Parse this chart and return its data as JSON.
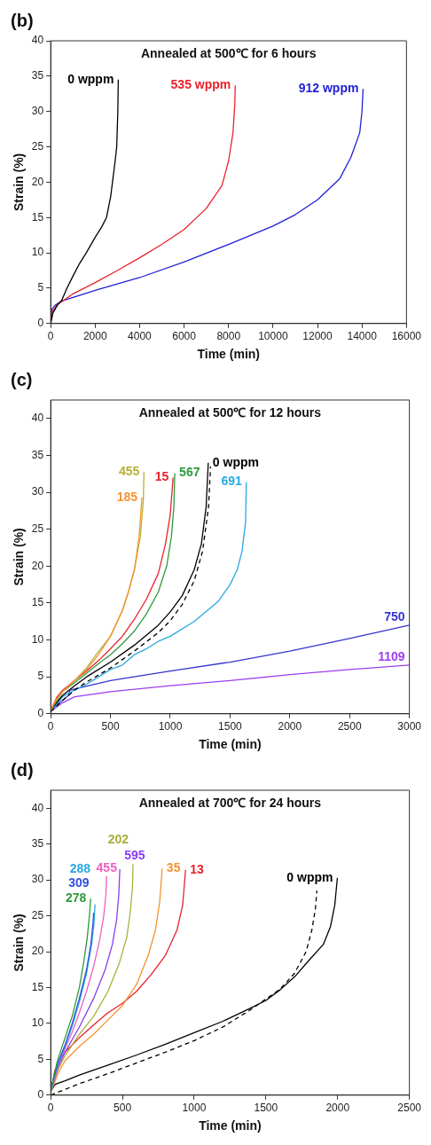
{
  "chart_data": [
    {
      "type": "line",
      "title": "(b)",
      "subtitle": "Annealed at 500℃ for 6 hours",
      "xlabel": "Time (min)",
      "ylabel": "Strain (%)",
      "xlim": [
        0,
        16000
      ],
      "xticks": [
        0,
        2000,
        4000,
        6000,
        8000,
        10000,
        12000,
        14000,
        16000
      ],
      "ylim": [
        0,
        40
      ],
      "yticks": [
        0,
        5,
        10,
        15,
        20,
        25,
        30,
        35,
        40
      ],
      "legend": false,
      "series": [
        {
          "name": "0 wppm",
          "color": "#000000",
          "x": [
            0,
            100,
            300,
            500,
            730,
            1000,
            1300,
            1600,
            2000,
            2300,
            2510,
            2700,
            2780,
            2900,
            2970,
            3020,
            3040
          ],
          "values": [
            0,
            1.5,
            2.6,
            3.3,
            5,
            6.7,
            8.5,
            10,
            12.2,
            13.7,
            15,
            18,
            20,
            23,
            25,
            30,
            34.5
          ]
        },
        {
          "name": "535 wppm",
          "color": "#e8222a",
          "x": [
            0,
            100,
            300,
            600,
            1000,
            2000,
            3000,
            4000,
            5000,
            6000,
            7000,
            7700,
            8000,
            8200,
            8280,
            8300
          ],
          "values": [
            0,
            1.8,
            2.7,
            3.3,
            4.2,
            5.8,
            7.5,
            9.3,
            11.2,
            13.3,
            16.3,
            19.5,
            23,
            27,
            31,
            33.7
          ]
        },
        {
          "name": "912 wppm",
          "color": "#2020d8",
          "x": [
            0,
            50,
            200,
            500,
            1000,
            1600,
            2000,
            4000,
            6000,
            8000,
            10000,
            11000,
            12000,
            13000,
            13500,
            13900,
            14000,
            14050
          ],
          "values": [
            0,
            2,
            2.6,
            3.2,
            3.7,
            4.3,
            4.7,
            6.5,
            8.7,
            11.2,
            13.8,
            15.4,
            17.5,
            20.5,
            23.5,
            27,
            30,
            33.2
          ]
        }
      ]
    },
    {
      "type": "line",
      "title": "(c)",
      "subtitle": "Annealed at 500℃ for 12 hours",
      "xlabel": "Time (min)",
      "ylabel": "Strain (%)",
      "xlim": [
        0,
        3000
      ],
      "xticks": [
        0,
        500,
        1000,
        1500,
        2000,
        2500,
        3000
      ],
      "ylim": [
        0,
        42.5
      ],
      "yticks": [
        0,
        5,
        10,
        15,
        20,
        25,
        30,
        35,
        40
      ],
      "legend": false,
      "series": [
        {
          "name": "185",
          "color": "#f5922f",
          "x": [
            0,
            50,
            100,
            200,
            300,
            400,
            500,
            600,
            650,
            700,
            740,
            763
          ],
          "values": [
            0.5,
            2,
            3,
            4.5,
            6,
            8,
            10.5,
            14,
            16.5,
            19.5,
            24,
            29.3
          ]
        },
        {
          "name": "455",
          "color": "#b5b234",
          "x": [
            0,
            50,
            100,
            200,
            300,
            380,
            500,
            600,
            650,
            700,
            750,
            775,
            780
          ],
          "values": [
            0.5,
            2,
            3,
            4.5,
            6.2,
            8,
            10.5,
            14,
            16.5,
            19.5,
            24,
            29,
            32.8
          ]
        },
        {
          "name": "15",
          "color": "#e8222a",
          "x": [
            0,
            50,
            100,
            200,
            300,
            400,
            500,
            600,
            700,
            800,
            900,
            960,
            1000,
            1024
          ],
          "values": [
            0.5,
            2.2,
            3.2,
            4.5,
            5.8,
            7.2,
            8.8,
            10.5,
            12.8,
            15.5,
            19,
            23,
            27,
            32
          ]
        },
        {
          "name": "567",
          "color": "#2e9a3a",
          "x": [
            0,
            50,
            100,
            200,
            300,
            400,
            500,
            600,
            700,
            800,
            900,
            970,
            1010,
            1030,
            1038
          ],
          "values": [
            0.5,
            1.8,
            3,
            4.2,
            5.5,
            6.8,
            8,
            9.5,
            11.2,
            13.5,
            16.5,
            20,
            24,
            28,
            32.6
          ]
        },
        {
          "name": "0 wppm",
          "color": "#000000",
          "x": [
            0,
            100,
            200,
            300,
            500,
            700,
            900,
            1000,
            1100,
            1200,
            1260,
            1300,
            1318
          ],
          "values": [
            0.5,
            2.5,
            3.8,
            5,
            7,
            9.3,
            12,
            13.8,
            16,
            19.5,
            23,
            28,
            34
          ]
        },
        {
          "color": "#000000",
          "line_style": "dashed",
          "x": [
            0,
            100,
            200,
            300,
            500,
            700,
            900,
            1000,
            1100,
            1200,
            1270,
            1320,
            1337
          ],
          "values": [
            0.3,
            1.8,
            3.2,
            4.3,
            6.2,
            8.5,
            11,
            12.6,
            14.8,
            18,
            22,
            28,
            33.5
          ]
        },
        {
          "name": "691",
          "color": "#2aa8e0",
          "x": [
            0,
            100,
            150,
            200,
            300,
            400,
            500,
            600,
            700,
            800,
            900,
            1000,
            1200,
            1400,
            1500,
            1560,
            1600,
            1630,
            1636
          ],
          "values": [
            0.3,
            2.3,
            2.8,
            3.2,
            4,
            5,
            6,
            6.6,
            8,
            8.8,
            9.8,
            10.5,
            12.5,
            15.2,
            17.5,
            19.5,
            22,
            26,
            31.4
          ]
        },
        {
          "name": "750",
          "color": "#3535d0",
          "x": [
            0,
            150,
            160,
            500,
            1000,
            1500,
            2000,
            2500,
            3000
          ],
          "values": [
            0.5,
            2.5,
            3.2,
            4.5,
            5.8,
            7,
            8.5,
            10.2,
            12
          ]
        },
        {
          "name": "1109",
          "color": "#9b3ef0",
          "x": [
            0,
            100,
            200,
            500,
            1000,
            1500,
            2000,
            2500,
            3000
          ],
          "values": [
            0.3,
            1.5,
            2.3,
            3,
            3.8,
            4.5,
            5.3,
            6,
            6.6
          ]
        }
      ]
    },
    {
      "type": "line",
      "title": "(d)",
      "subtitle": "Annealed at 700℃ for 24 hours",
      "xlabel": "Time (min)",
      "ylabel": "Strain (%)",
      "xlim": [
        0,
        2500
      ],
      "xticks": [
        0,
        500,
        1000,
        1500,
        2000,
        2500
      ],
      "ylim": [
        0,
        42.5
      ],
      "yticks": [
        0,
        5,
        10,
        15,
        20,
        25,
        30,
        35,
        40
      ],
      "legend": false,
      "series": [
        {
          "name": "278",
          "color": "#2e9a3a",
          "x": [
            0,
            20,
            50,
            100,
            150,
            200,
            230,
            255,
            270,
            279
          ],
          "values": [
            0.5,
            2.5,
            5,
            8,
            11,
            15,
            18.5,
            22,
            25,
            27.4
          ]
        },
        {
          "name": "309",
          "color": "#2f4ee0",
          "x": [
            0,
            20,
            50,
            100,
            150,
            200,
            250,
            280,
            295,
            299
          ],
          "values": [
            0.5,
            2.3,
            4.5,
            7,
            10,
            13.5,
            17.5,
            21,
            24,
            25.4
          ]
        },
        {
          "name": "288",
          "color": "#2aa8e0",
          "x": [
            0,
            20,
            50,
            100,
            150,
            200,
            250,
            285,
            302,
            309
          ],
          "values": [
            0.5,
            2.2,
            4.2,
            6.8,
            9.6,
            13,
            17,
            21,
            24,
            26.6
          ]
        },
        {
          "name": "455",
          "color": "#ee5fc0",
          "x": [
            0,
            50,
            100,
            150,
            200,
            250,
            300,
            340,
            370,
            385,
            390
          ],
          "values": [
            0.5,
            4,
            6.5,
            8.8,
            11.5,
            14.5,
            18,
            21.5,
            25,
            28,
            30.5
          ]
        },
        {
          "name": "595",
          "color": "#8a3ef0",
          "x": [
            0,
            50,
            100,
            200,
            300,
            380,
            430,
            460,
            475,
            482
          ],
          "values": [
            0.5,
            3.8,
            6,
            9.5,
            13.5,
            17.5,
            21,
            24.5,
            28,
            31.5
          ]
        },
        {
          "name": "202",
          "color": "#a8b03a",
          "x": [
            0,
            50,
            100,
            200,
            300,
            400,
            480,
            530,
            555,
            570,
            574
          ],
          "values": [
            0.5,
            3.5,
            5.5,
            8.5,
            11,
            14.5,
            18.5,
            22,
            25.5,
            29,
            32.2
          ]
        },
        {
          "name": "35",
          "color": "#f5922f",
          "x": [
            0,
            50,
            100,
            200,
            300,
            400,
            500,
            600,
            680,
            730,
            760,
            777
          ],
          "values": [
            0.3,
            3,
            4.8,
            6.8,
            8.5,
            10.5,
            12.5,
            15.5,
            19.5,
            23,
            27,
            31.6
          ]
        },
        {
          "name": "13",
          "color": "#e8222a",
          "x": [
            0,
            30,
            100,
            200,
            300,
            400,
            500,
            600,
            700,
            800,
            880,
            920,
            940
          ],
          "values": [
            0.5,
            3.5,
            6,
            8,
            9.8,
            11.5,
            12.8,
            14.5,
            16.8,
            19.5,
            23,
            26.5,
            31.4
          ]
        },
        {
          "name": "0 wppm",
          "color": "#000000",
          "x": [
            0,
            30,
            100,
            200,
            400,
            600,
            800,
            1000,
            1200,
            1400,
            1500,
            1600,
            1700,
            1800,
            1900,
            1950,
            1980,
            1998
          ],
          "values": [
            0.5,
            1.5,
            2,
            2.8,
            4.2,
            5.6,
            7.1,
            8.7,
            10.3,
            12.2,
            13.2,
            14.7,
            16.5,
            18.8,
            21,
            23.5,
            26.5,
            30.3
          ]
        },
        {
          "color": "#000000",
          "line_style": "dashed",
          "x": [
            0,
            100,
            200,
            400,
            600,
            800,
            1000,
            1200,
            1400,
            1600,
            1700,
            1780,
            1820,
            1845,
            1855
          ],
          "values": [
            0,
            0.8,
            1.6,
            3,
            4.5,
            6,
            7.6,
            9.5,
            12,
            14.8,
            17,
            20,
            23,
            26,
            28.5
          ]
        }
      ]
    }
  ]
}
